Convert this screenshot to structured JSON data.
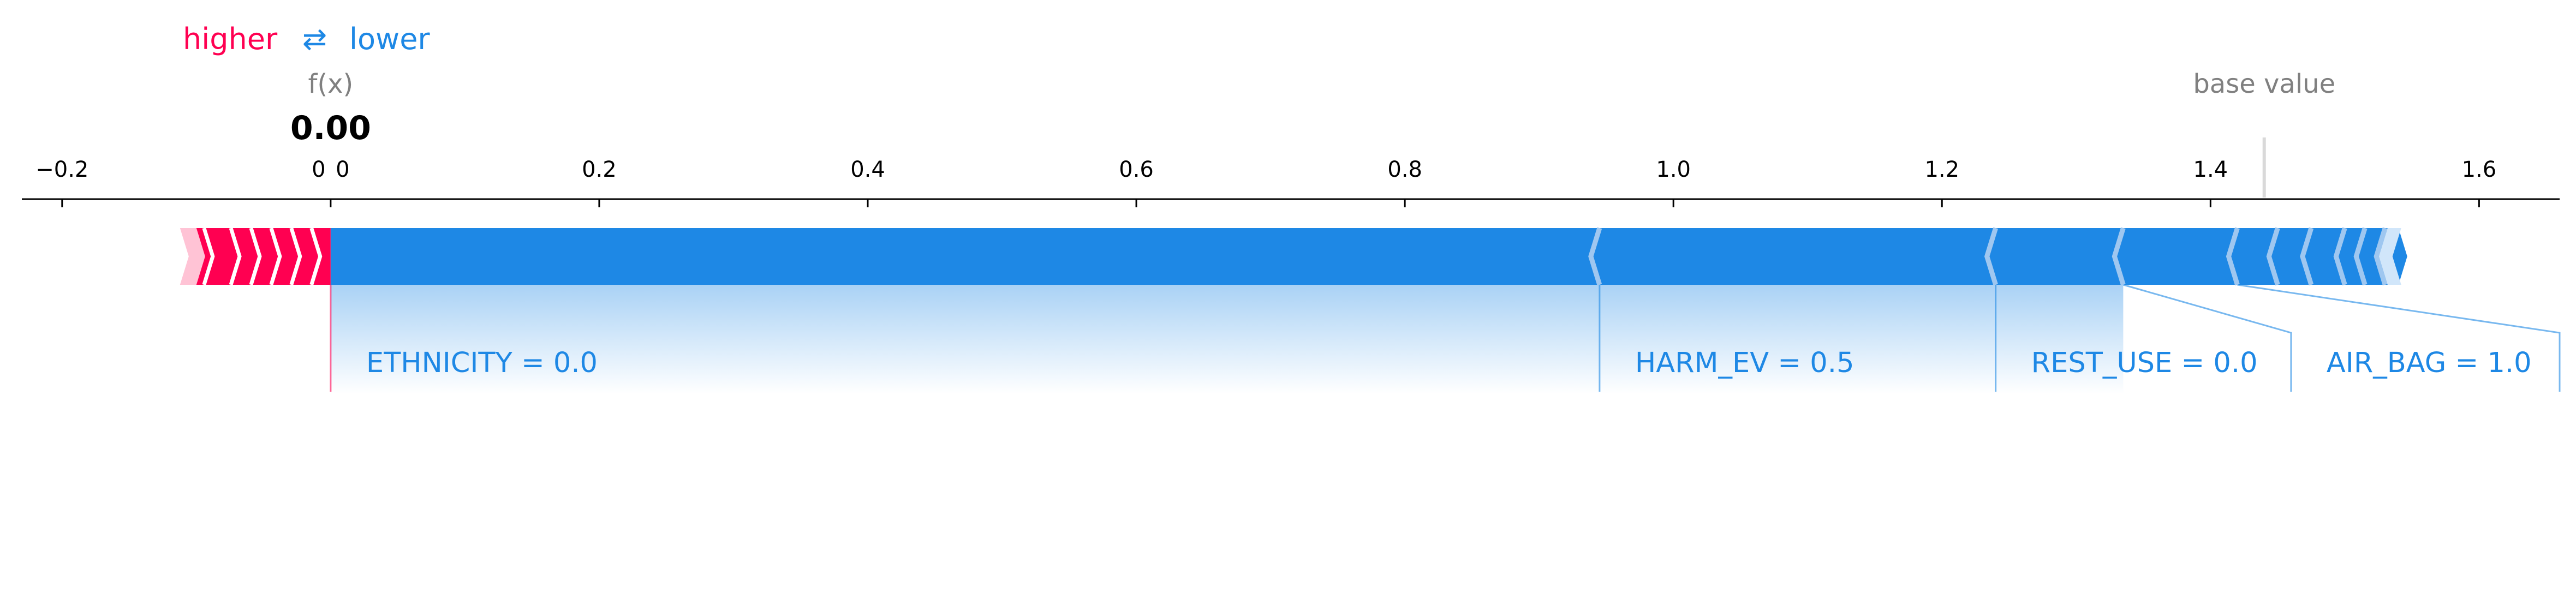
{
  "legend": {
    "higher": "higher",
    "arrows": "⇄",
    "lower": "lower",
    "higher_color": "#ff0051",
    "lower_color": "#1e88e5"
  },
  "chart_data": {
    "type": "force",
    "xlim": [
      -0.23,
      1.66
    ],
    "ticks": [
      {
        "value": -0.2,
        "label": "−0.2"
      },
      {
        "value": 0.0,
        "label": "0"
      },
      {
        "value": 0.2,
        "label": "0.2"
      },
      {
        "value": 0.4,
        "label": "0.4"
      },
      {
        "value": 0.6,
        "label": "0.6"
      },
      {
        "value": 0.8,
        "label": "0.8"
      },
      {
        "value": 1.0,
        "label": "1.0"
      },
      {
        "value": 1.2,
        "label": "1.2"
      },
      {
        "value": 1.4,
        "label": "1.4"
      },
      {
        "value": 1.6,
        "label": "1.6"
      }
    ],
    "fx": {
      "label": "f(x)",
      "value": 0.0,
      "value_label": "0.00",
      "tick_label": "0"
    },
    "base_value": {
      "label": "base value",
      "value": 1.44
    },
    "positive": {
      "color": "#ff0051",
      "light_color": "#ffc3d5",
      "start": -0.1,
      "boundaries": [
        -0.1,
        -0.08,
        -0.065,
        -0.05,
        -0.035,
        -0.02,
        0.0
      ]
    },
    "negative": {
      "color": "#1e88e5",
      "light_color": "#d1e6fa",
      "end": 1.54,
      "boundaries": [
        0.0,
        0.945,
        1.24,
        1.335,
        1.42,
        1.45,
        1.475,
        1.5,
        1.515,
        1.53,
        1.54
      ]
    },
    "features": [
      {
        "name": "ETHNICITY ",
        "value": "0.0",
        "label": "ETHNICITY  = 0.0",
        "from": 0.0,
        "to": 0.945
      },
      {
        "name": "HARM_EV",
        "value": "0.5",
        "label": "HARM_EV = 0.5",
        "from": 0.945,
        "to": 1.24
      },
      {
        "name": "REST_USE",
        "value": "0.0",
        "label": "REST_USE = 0.0",
        "from": 1.24,
        "to": 1.335
      },
      {
        "name": "AIR_BAG",
        "value": "1.0",
        "label": "AIR_BAG = 1.0",
        "from": 1.335,
        "to": 1.42
      }
    ]
  }
}
